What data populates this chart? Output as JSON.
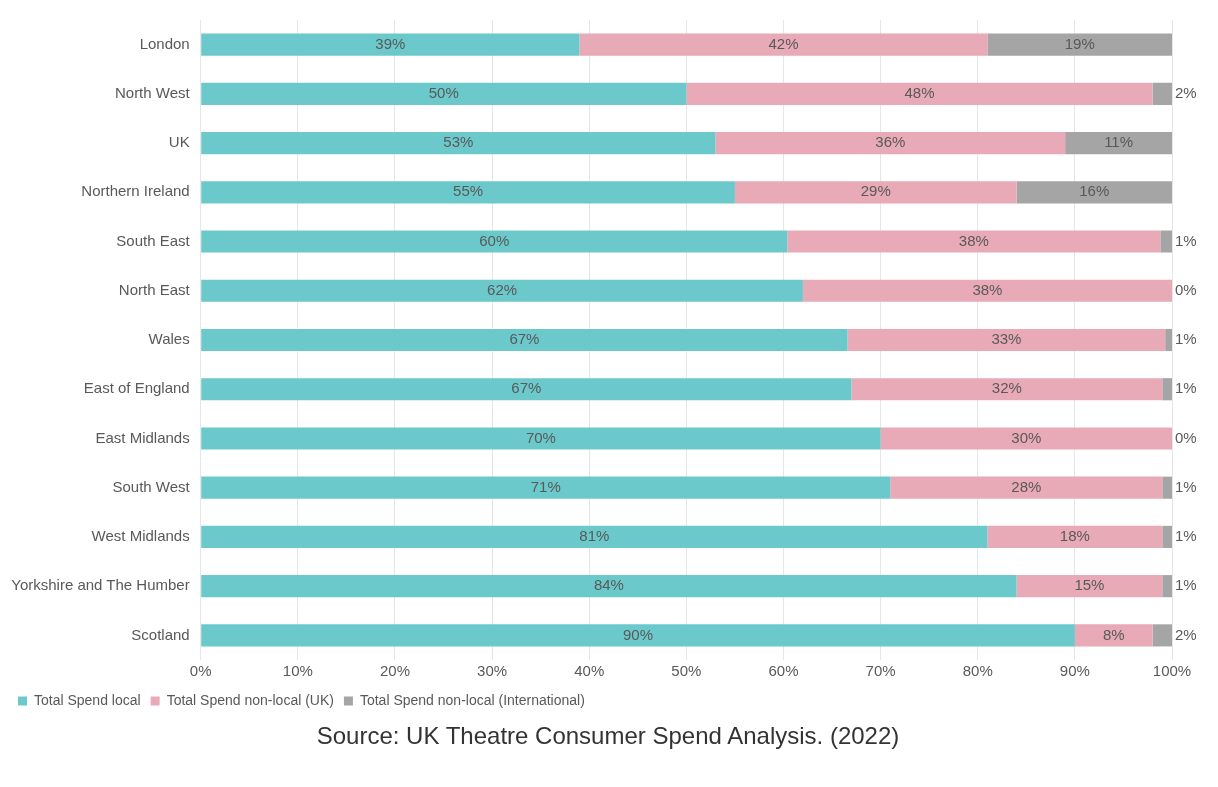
{
  "chart_data": {
    "type": "bar",
    "orientation": "horizontal",
    "stacked": true,
    "categories": [
      "London",
      "North West",
      "UK",
      "Northern Ireland",
      "South East",
      "North East",
      "Wales",
      "East of England",
      "East Midlands",
      "South West",
      "West Midlands",
      "Yorkshire and The Humber",
      "Scotland"
    ],
    "series": [
      {
        "name": "Total Spend local",
        "color": "#6cc9cb",
        "values": [
          39,
          50,
          53,
          55,
          60.4,
          62,
          66.6,
          67,
          70,
          71,
          81,
          84,
          90
        ],
        "value_labels": [
          "39%",
          "50%",
          "53%",
          "55%",
          "60%",
          "62%",
          "67%",
          "67%",
          "70%",
          "71%",
          "81%",
          "84%",
          "90%"
        ]
      },
      {
        "name": "Total Spend non-local (UK)",
        "color": "#e8aab6",
        "values": [
          42,
          48,
          36,
          29,
          38.4,
          38,
          32.7,
          32,
          30,
          28,
          18,
          15,
          8
        ],
        "value_labels": [
          "42%",
          "48%",
          "36%",
          "29%",
          "38%",
          "38%",
          "33%",
          "32%",
          "30%",
          "28%",
          "18%",
          "15%",
          "8%"
        ]
      },
      {
        "name": "Total Spend non-local (International)",
        "color": "#a5a5a5",
        "values": [
          19,
          2,
          11,
          16,
          1.2,
          0,
          0.7,
          1,
          0,
          1,
          1,
          1,
          2
        ],
        "value_labels": [
          "19%",
          "2%",
          "11%",
          "16%",
          "1%",
          "0%",
          "1%",
          "1%",
          "0%",
          "1%",
          "1%",
          "1%",
          "2%"
        ]
      }
    ],
    "xlim": [
      0,
      100
    ],
    "xticks": [
      {
        "value": 0,
        "label": "0%"
      },
      {
        "value": 10,
        "label": "10%"
      },
      {
        "value": 20,
        "label": "20%"
      },
      {
        "value": 30,
        "label": "30%"
      },
      {
        "value": 40,
        "label": "40%"
      },
      {
        "value": 50,
        "label": "50%"
      },
      {
        "value": 60,
        "label": "60%"
      },
      {
        "value": 70,
        "label": "70%"
      },
      {
        "value": 80,
        "label": "80%"
      },
      {
        "value": 90,
        "label": "90%"
      },
      {
        "value": 100,
        "label": "100%"
      }
    ],
    "grid": "x",
    "legend": "bottom left",
    "annotations": [
      "Source: UK Theatre Consumer Spend Analysis. (2022)"
    ]
  }
}
